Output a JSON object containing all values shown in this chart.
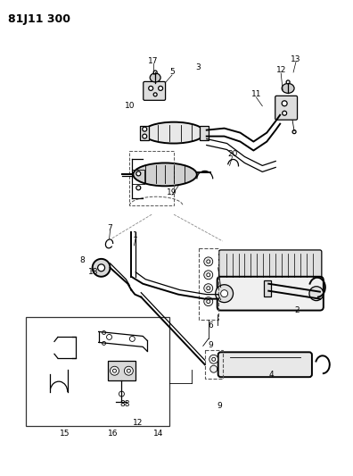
{
  "page_id": "81J11 300",
  "bg": "#ffffff",
  "lc": "#000000",
  "figsize": [
    3.96,
    5.33
  ],
  "dpi": 100
}
